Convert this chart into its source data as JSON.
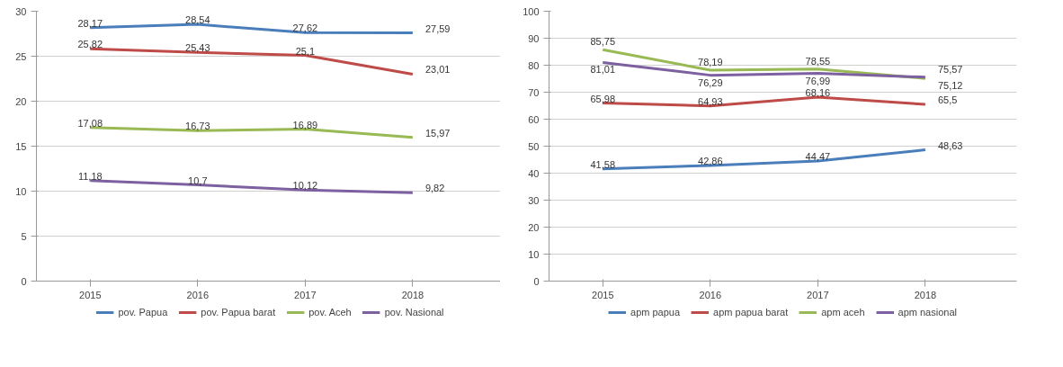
{
  "chart_data": [
    {
      "type": "line",
      "categories": [
        "2015",
        "2016",
        "2017",
        "2018"
      ],
      "ylim": [
        0,
        30
      ],
      "yticks": [
        0,
        5,
        10,
        15,
        20,
        25,
        30
      ],
      "grid": "y",
      "legend": "bottom",
      "marker": "none",
      "line_style": "solid",
      "series": [
        {
          "name": "pov. Papua",
          "color": "#4a7ebb",
          "values": [
            28.17,
            28.54,
            27.62,
            27.59
          ],
          "value_labels": [
            "28,17",
            "28,54",
            "27,62",
            "27,59"
          ]
        },
        {
          "name": "pov. Papua barat",
          "color": "#be4b48",
          "values": [
            25.82,
            25.43,
            25.1,
            23.01
          ],
          "value_labels": [
            "25,82",
            "25,43",
            "25,1",
            "23,01"
          ]
        },
        {
          "name": "pov. Aceh",
          "color": "#98b954",
          "values": [
            17.08,
            16.73,
            16.89,
            15.97
          ],
          "value_labels": [
            "17,08",
            "16,73",
            "16,89",
            "15,97"
          ]
        },
        {
          "name": "pov. Nasional",
          "color": "#7d60a0",
          "values": [
            11.18,
            10.7,
            10.12,
            9.82
          ],
          "value_labels": [
            "11,18",
            "10,7",
            "10,12",
            "9,82"
          ]
        }
      ]
    },
    {
      "type": "line",
      "categories": [
        "2015",
        "2016",
        "2017",
        "2018"
      ],
      "ylim": [
        0,
        100
      ],
      "yticks": [
        0,
        10,
        20,
        30,
        40,
        50,
        60,
        70,
        80,
        90,
        100
      ],
      "grid": "y",
      "legend": "bottom",
      "marker": "none",
      "line_style": "solid",
      "series": [
        {
          "name": "apm papua",
          "color": "#4a7ebb",
          "values": [
            41.58,
            42.86,
            44.47,
            48.63
          ],
          "value_labels": [
            "41,58",
            "42,86",
            "44,47",
            "48,63"
          ]
        },
        {
          "name": "apm papua barat",
          "color": "#be4b48",
          "values": [
            65.98,
            64.93,
            68.16,
            65.5
          ],
          "value_labels": [
            "65,98",
            "64,93",
            "68,16",
            "65,5"
          ]
        },
        {
          "name": "apm aceh",
          "color": "#98b954",
          "values": [
            85.75,
            78.19,
            78.55,
            75.12
          ],
          "value_labels": [
            "85,75",
            "78,19",
            "78,55",
            "75,12"
          ]
        },
        {
          "name": "apm nasional",
          "color": "#7d60a0",
          "values": [
            81.01,
            76.29,
            76.99,
            75.57
          ],
          "value_labels": [
            "81,01",
            "76,29",
            "76,99",
            "75,57"
          ]
        }
      ]
    }
  ]
}
